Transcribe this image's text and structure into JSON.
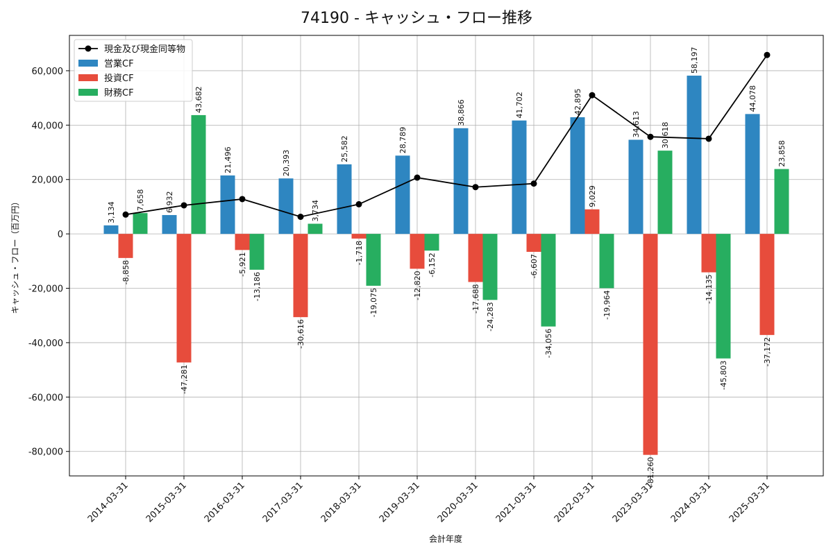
{
  "chart_data": {
    "type": "bar",
    "title": "74190 - キャッシュ・フロー推移",
    "xlabel": "会計年度",
    "ylabel": "キャッシュ・フロー（百万円）",
    "ylim": [
      -89000,
      73000
    ],
    "yticks": [
      -80000,
      -60000,
      -40000,
      -20000,
      0,
      20000,
      40000,
      60000
    ],
    "grid": true,
    "legend_position": "top-left",
    "categories": [
      "2014-03-31",
      "2015-03-31",
      "2016-03-31",
      "2017-03-31",
      "2018-03-31",
      "2019-03-31",
      "2020-03-31",
      "2021-03-31",
      "2022-03-31",
      "2023-03-31",
      "2024-03-31",
      "2025-03-31"
    ],
    "series": [
      {
        "name": "営業CF",
        "type": "bar",
        "color": "#2e86c1",
        "values": [
          3134,
          6932,
          21496,
          20393,
          25582,
          28789,
          38866,
          41702,
          42895,
          34613,
          58197,
          44078
        ],
        "labels": [
          "3,134",
          "6,932",
          "21,496",
          "20,393",
          "25,582",
          "28,789",
          "38,866",
          "41,702",
          "42,895",
          "34,613",
          "58,197",
          "44,078"
        ]
      },
      {
        "name": "投資CF",
        "type": "bar",
        "color": "#e74c3c",
        "values": [
          -8858,
          -47281,
          -5921,
          -30616,
          -1718,
          -12820,
          -17688,
          -6607,
          9029,
          -81260,
          -14135,
          -37172
        ],
        "labels": [
          "-8,858",
          "-47,281",
          "-5,921",
          "-30,616",
          "-1,718",
          "-12,820",
          "-17,688",
          "-6,607",
          "9,029",
          "-81,260",
          "-14,135",
          "-37,172"
        ]
      },
      {
        "name": "財務CF",
        "type": "bar",
        "color": "#27ae60",
        "values": [
          7658,
          43682,
          -13186,
          3734,
          -19075,
          -6152,
          -24283,
          -34056,
          -19964,
          30618,
          -45803,
          23858
        ],
        "labels": [
          "7,658",
          "43,682",
          "-13,186",
          "3,734",
          "-19,075",
          "-6,152",
          "-24,283",
          "-34,056",
          "-19,964",
          "30,618",
          "-45,803",
          "23,858"
        ]
      },
      {
        "name": "現金及び現金同等物",
        "type": "line",
        "color": "#000000",
        "values": [
          7100,
          10500,
          12800,
          6300,
          10900,
          20700,
          17200,
          18500,
          51000,
          35700,
          35000,
          65800
        ]
      }
    ]
  }
}
